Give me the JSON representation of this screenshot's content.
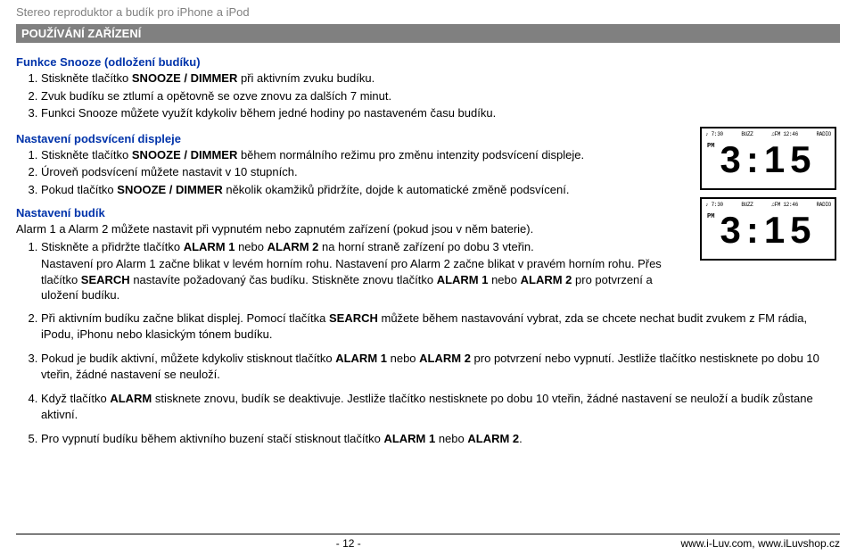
{
  "header": {
    "grey_line": "Stereo reproduktor a budík pro iPhone a iPod",
    "section_bar": "POUŽÍVÁNÍ ZAŘÍZENÍ"
  },
  "snooze": {
    "title": "Funkce Snooze (odložení budíku)",
    "items": [
      "Stiskněte tlačítko SNOOZE / DIMMER při aktivním zvuku budíku.",
      "Zvuk budíku se ztlumí a opětovně se ozve znovu za dalších 7 minut.",
      "Funkci Snooze můžete využít kdykoliv během jedné hodiny po nastaveném času budíku."
    ]
  },
  "backlight": {
    "title": "Nastavení podsvícení displeje",
    "items": [
      "Stiskněte tlačítko SNOOZE / DIMMER během normálního režimu pro změnu intenzity podsvícení displeje.",
      "Úroveň podsvícení můžete nastavit v 10 stupních.",
      "Pokud tlačítko SNOOZE / DIMMER několik okamžiků přidržíte, dojde k automatické změně podsvícení."
    ]
  },
  "alarm": {
    "title": "Nastavení budík",
    "intro": "Alarm 1 a Alarm 2 můžete nastavit při vypnutém nebo zapnutém zařízení (pokud jsou v něm baterie).",
    "item1": "Stiskněte a přidržte tlačítko ALARM 1 nebo ALARM 2 na horní straně zařízení po dobu 3 vteřin.",
    "item1_para": "Nastavení pro Alarm 1 začne blikat v levém horním rohu. Nastavení pro Alarm 2 začne blikat v pravém horním rohu. Přes tlačítko SEARCH nastavíte požadovaný čas budíku. Stiskněte znovu tlačítko ALARM 1 nebo ALARM 2 pro potvrzení a uložení budíku.",
    "item2": "Při aktivním budíku začne blikat displej. Pomocí tlačítka SEARCH můžete během nastavování vybrat, zda se chcete nechat budit zvukem z FM rádia, iPodu, iPhonu nebo klasickým tónem budíku.",
    "item3": "Pokud je budík aktivní, můžete kdykoliv stisknout tlačítko ALARM 1 nebo ALARM 2 pro potvrzení nebo vypnutí. Jestliže tlačítko nestisknete po dobu 10 vteřin, žádné nastavení se neuloží.",
    "item4": "Když tlačítko ALARM stisknete znovu, budík se deaktivuje. Jestliže tlačítko nestisknete po dobu 10 vteřin, žádné nastavení se neuloží a budík zůstane aktivní.",
    "item5": "Pro vypnutí budíku během aktivního buzení stačí stisknout tlačítko ALARM 1 nebo ALARM 2."
  },
  "lcd": {
    "tl": "♪ 7:30",
    "tc1": "BUZZ",
    "tc2": "♫FM 12:46",
    "tr": "RADIO",
    "pm": "PM",
    "big": "3:15"
  },
  "footer": {
    "page": "- 12 -",
    "right": "www.i-Luv.com, www.iLuvshop.cz"
  }
}
